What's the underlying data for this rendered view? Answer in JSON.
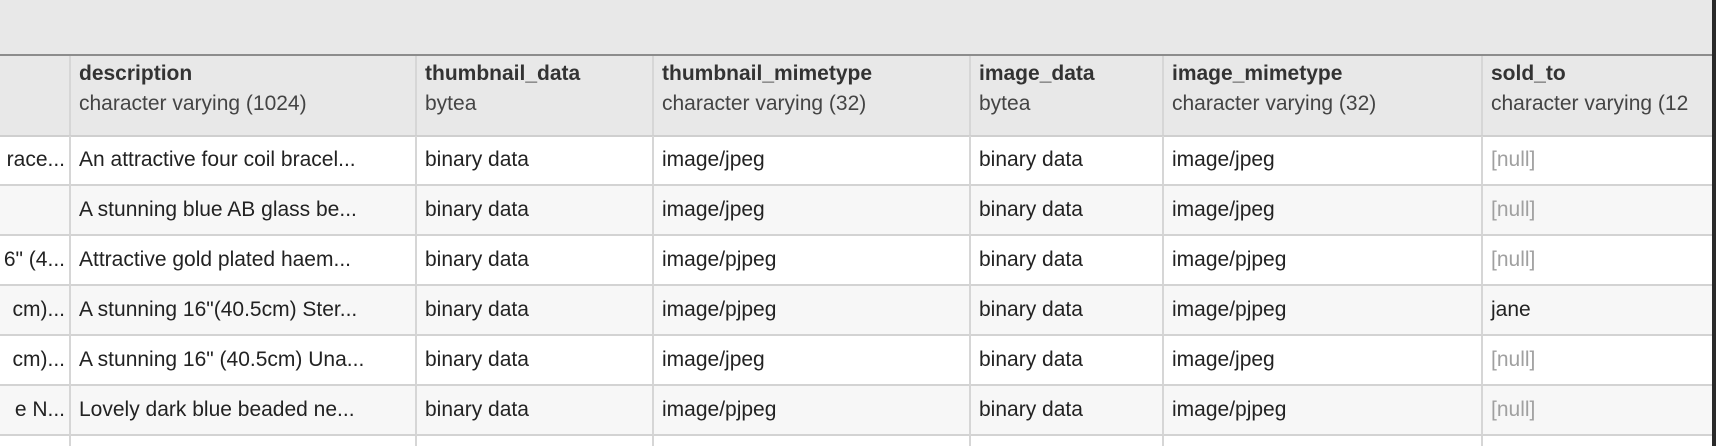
{
  "columns": [
    {
      "name": "",
      "type": ""
    },
    {
      "name": "description",
      "type": "character varying (1024)"
    },
    {
      "name": "thumbnail_data",
      "type": "bytea"
    },
    {
      "name": "thumbnail_mimetype",
      "type": "character varying (32)"
    },
    {
      "name": "image_data",
      "type": "bytea"
    },
    {
      "name": "image_mimetype",
      "type": "character varying (32)"
    },
    {
      "name": "sold_to",
      "type": "character varying (12"
    }
  ],
  "rows": [
    [
      "race...",
      "An attractive four coil bracel...",
      "binary data",
      "image/jpeg",
      "binary data",
      "image/jpeg",
      "[null]"
    ],
    [
      "",
      "A stunning blue AB glass be...",
      "binary data",
      "image/jpeg",
      "binary data",
      "image/jpeg",
      "[null]"
    ],
    [
      "6\" (4...",
      "Attractive gold plated haem...",
      "binary data",
      "image/pjpeg",
      "binary data",
      "image/pjpeg",
      "[null]"
    ],
    [
      "cm)...",
      "A stunning 16\"(40.5cm) Ster...",
      "binary data",
      "image/pjpeg",
      "binary data",
      "image/pjpeg",
      "jane"
    ],
    [
      "cm)...",
      "A stunning 16\" (40.5cm) Una...",
      "binary data",
      "image/jpeg",
      "binary data",
      "image/jpeg",
      "[null]"
    ],
    [
      "e N...",
      "Lovely dark blue beaded ne...",
      "binary data",
      "image/pjpeg",
      "binary data",
      "image/pjpeg",
      "[null]"
    ],
    [
      "",
      "",
      "",
      "",
      "",
      "",
      ""
    ]
  ]
}
